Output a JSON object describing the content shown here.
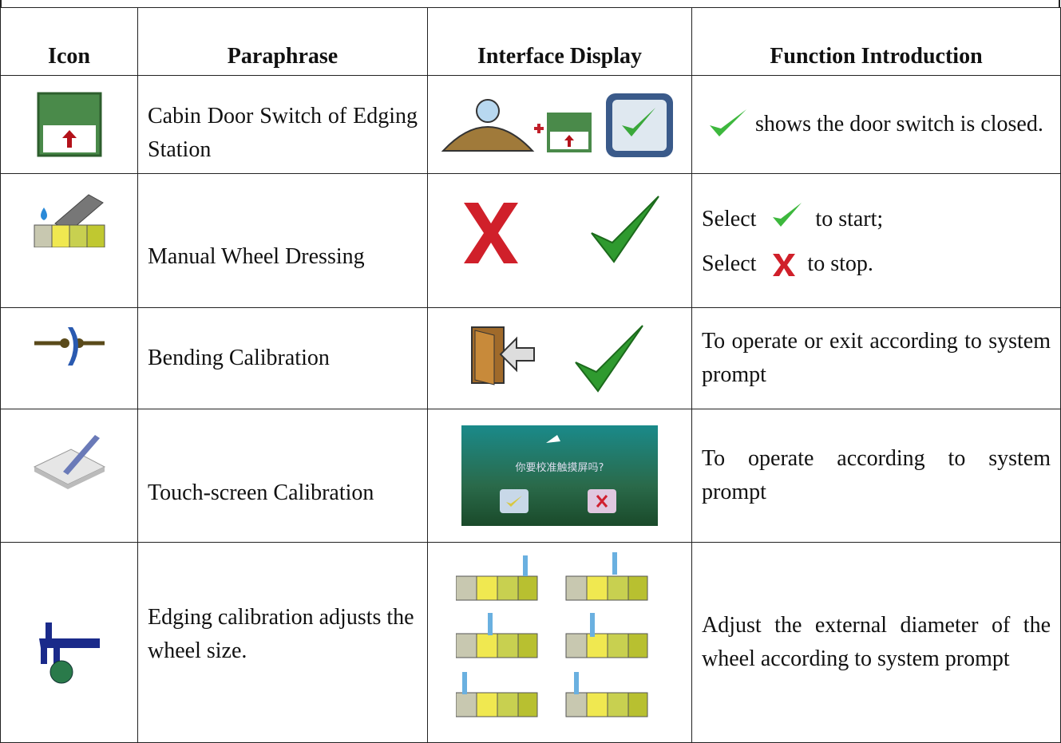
{
  "table": {
    "header": [
      "Icon",
      "Paraphrase",
      "Interface Display",
      "Function Introduction"
    ],
    "rows": [
      {
        "paraphrase": "Cabin Door Switch of Edging Station",
        "function": [
          "shows the door switch is closed."
        ]
      },
      {
        "paraphrase": "Manual Wheel Dressing",
        "function": [
          "Select",
          "to start;",
          "Select",
          "to stop."
        ]
      },
      {
        "paraphrase": "Bending Calibration",
        "function": [
          "To operate or exit according to system prompt"
        ]
      },
      {
        "paraphrase": "Touch-screen Calibration",
        "display_text": "你要校准触摸屏吗?",
        "function": [
          "To operate according to system prompt"
        ]
      },
      {
        "paraphrase": "Edging calibration adjusts the wheel size.",
        "function": [
          "Adjust the external diameter of the wheel according to system prompt"
        ]
      }
    ]
  }
}
